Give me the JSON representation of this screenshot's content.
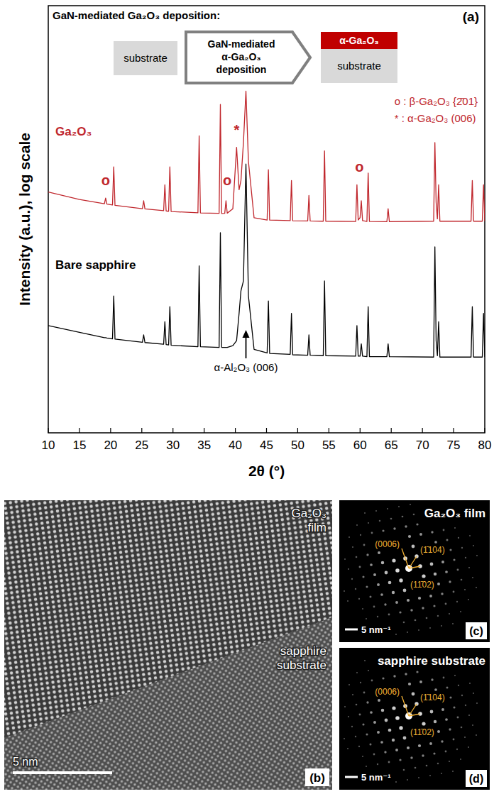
{
  "chart_data": {
    "type": "line",
    "title": "GaN-mediated Ga₂O₃ deposition:",
    "panel_label": "(a)",
    "x_label": "2θ (°)",
    "y_label": "Intensity (a.u.), log scale",
    "x": [
      10,
      15,
      19.0,
      19.2,
      19.4,
      20.3,
      20.5,
      20.7,
      25.1,
      25.3,
      25.5,
      28.5,
      28.7,
      28.9,
      29.3,
      29.5,
      29.7,
      34.0,
      34.2,
      34.4,
      37.4,
      37.6,
      37.8,
      38.3,
      38.5,
      38.7,
      39.6,
      40.2,
      40.6,
      40.9,
      41.3,
      41.7,
      42.1,
      43.0,
      45.1,
      45.3,
      45.5,
      48.8,
      49.0,
      49.2,
      51.6,
      51.8,
      52.0,
      54.1,
      54.3,
      54.5,
      59.3,
      59.5,
      59.7,
      60.0,
      60.2,
      60.4,
      61.1,
      61.3,
      61.5,
      64.3,
      64.5,
      64.7,
      71.8,
      72.0,
      72.2,
      72.4,
      72.6,
      72.8,
      77.8,
      78.0,
      78.2,
      79.6,
      79.8,
      80
    ],
    "series": [
      {
        "name": "Ga₂O₃",
        "color": "#c0272d",
        "values": [
          660,
          540,
          480,
          560,
          475,
          465,
          1300,
          460,
          420,
          520,
          418,
          398,
          800,
          396,
          392,
          1300,
          390,
          376,
          3000,
          375,
          371,
          7000,
          370,
          371,
          520,
          373,
          420,
          2200,
          700,
          900,
          2500,
          10000,
          1500,
          330,
          310,
          1200,
          309,
          305,
          900,
          304,
          302,
          600,
          302,
          300,
          2000,
          300,
          298,
          800,
          310,
          330,
          520,
          305,
          298,
          1100,
          298,
          296,
          420,
          296,
          300,
          2500,
          500,
          320,
          800,
          300,
          300,
          900,
          300,
          300,
          800,
          300
        ]
      },
      {
        "name": "Bare sapphire",
        "color": "#000000",
        "values": [
          18,
          15,
          13,
          13,
          12.9,
          12.6,
          40,
          12.5,
          11.5,
          14,
          11.4,
          10.9,
          20,
          10.8,
          10.7,
          30,
          10.6,
          10.2,
          90,
          10.2,
          10,
          220,
          10,
          10,
          10,
          10,
          10.5,
          12,
          25,
          46,
          60,
          1400,
          40,
          9.5,
          8.6,
          35,
          8.5,
          8.3,
          25,
          8.2,
          8.1,
          14,
          8.1,
          8,
          60,
          8,
          7.9,
          18,
          7.9,
          7.9,
          11,
          7.9,
          7.8,
          30,
          7.8,
          7.8,
          11,
          7.8,
          7.7,
          150,
          12,
          8,
          20,
          7.7,
          7.7,
          30,
          7.7,
          7.7,
          25,
          7.7
        ]
      }
    ],
    "xlim": [
      10,
      80
    ],
    "xticks": [
      10,
      15,
      20,
      25,
      30,
      35,
      40,
      45,
      50,
      55,
      60,
      65,
      70,
      75,
      80
    ],
    "ylim": [
      1,
      100000
    ],
    "log": "y",
    "tick_labels": "x",
    "annotations": [
      {
        "text": "o",
        "x": 19.2,
        "y": 900
      },
      {
        "text": "o",
        "x": 38.7,
        "y": 900
      },
      {
        "text": "*",
        "x": 40.2,
        "y": 3500
      },
      {
        "text": "o",
        "x": 59.9,
        "y": 1300
      }
    ],
    "arrow_annotation": {
      "text": "α-Al₂O₃ (006)",
      "x": 41.7,
      "y": 16
    },
    "marker_legend": [
      "o : β-Ga₂O₃ {2̄01}",
      "* : α-Ga₂O₃ (006)"
    ],
    "inset": {
      "before": "substrate",
      "process": [
        "GaN-mediated",
        "α-Ga₂O₃",
        "deposition"
      ],
      "layer": "α-Ga₂O₃",
      "after": "substrate"
    }
  },
  "tem_image": {
    "panel_label": "(b)",
    "film_label": [
      "Ga₂O₃",
      "film"
    ],
    "substrate_label": [
      "sapphire",
      "substrate"
    ],
    "scale_bar": "5 nm"
  },
  "diffraction_patterns": [
    {
      "panel_label": "(c)",
      "title": "Ga₂O₃ film",
      "spots": [
        "(0006)",
        "(1̄104)",
        "(11̄02)"
      ],
      "scale_bar": "5 nm⁻¹"
    },
    {
      "panel_label": "(d)",
      "title": "sapphire substrate",
      "spots": [
        "(0006)",
        "(1̄104)",
        "(11̄02)"
      ],
      "scale_bar": "5 nm⁻¹"
    }
  ]
}
